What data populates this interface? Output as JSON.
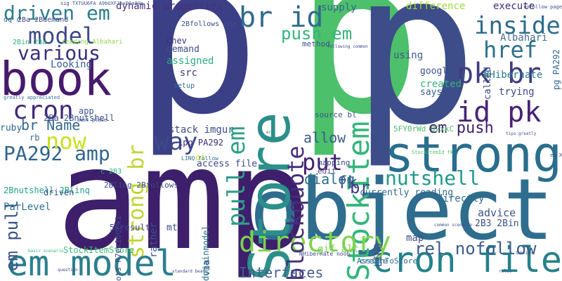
{
  "cloud": {
    "background": "#ffffff",
    "words": [
      {
        "text": "p",
        "color": "#3b3f86"
      },
      {
        "text": "p",
        "color": "#4cc06a"
      },
      {
        "text": "p",
        "color": "#3c4d89"
      },
      {
        "text": "amp",
        "color": "#3d1f6b"
      },
      {
        "text": "object",
        "color": "#2f6d8e"
      },
      {
        "text": "strong",
        "color": "#2a6e8d"
      },
      {
        "text": "Store",
        "color": "#2b8f8a"
      },
      {
        "text": "book",
        "color": "#471a6c"
      },
      {
        "text": "cron file",
        "color": "#24818b"
      },
      {
        "text": "em model",
        "color": "#2c7f8d"
      },
      {
        "text": "StockItem",
        "color": "#32b67a"
      },
      {
        "text": "directory",
        "color": "#7ed34f"
      },
      {
        "text": "pk br",
        "color": "#3f3c80"
      },
      {
        "text": "id pk",
        "color": "#482374"
      },
      {
        "text": "br id",
        "color": "#2e6b8e"
      },
      {
        "text": "model",
        "color": "#3e4989"
      },
      {
        "text": "cron",
        "color": "#3f2a78"
      },
      {
        "text": "various",
        "color": "#3b2f7c"
      },
      {
        "text": "driven em",
        "color": "#2c7d8e"
      },
      {
        "text": "strong br",
        "color": "#bfd630"
      },
      {
        "text": "PA292 amp",
        "color": "#30658d"
      },
      {
        "text": "now",
        "color": "#c9e020"
      },
      {
        "text": "inside",
        "color": "#2c6c8e"
      },
      {
        "text": "href",
        "color": "#2d708e"
      },
      {
        "text": "pull em",
        "color": "#2e9f87"
      },
      {
        "text": "blockquote",
        "color": "#462e7b"
      },
      {
        "text": "push em",
        "color": "#33b57b"
      },
      {
        "text": "way",
        "color": "#3e4a89"
      },
      {
        "text": "put",
        "color": "#431f6e"
      },
      {
        "text": "nutshell",
        "color": "#1f9a8a"
      },
      {
        "text": "rel nofollow",
        "color": "#3a5a8c"
      },
      {
        "text": "em push",
        "color": "#3c1f6e"
      },
      {
        "text": "em pull",
        "color": "#3b5289"
      },
      {
        "text": "fk",
        "color": "#3d4e8a"
      },
      {
        "text": "Interfaces",
        "color": "#455d8a"
      },
      {
        "text": "br Name",
        "color": "#31688e"
      },
      {
        "text": "allow",
        "color": "#3d5a8c"
      },
      {
        "text": "dialog",
        "color": "#2e708e"
      },
      {
        "text": "br",
        "color": "#3e3d8b"
      },
      {
        "text": "dynamic properties",
        "color": "#4a2e7d"
      },
      {
        "text": "supply",
        "color": "#31678e"
      },
      {
        "text": "difference",
        "color": "#9fda3a"
      },
      {
        "text": "execute",
        "color": "#412b78"
      },
      {
        "text": "Chev",
        "color": "#3b2f7c"
      },
      {
        "text": "demand",
        "color": "#3c4d8a"
      },
      {
        "text": "assigned",
        "color": "#27ad81"
      },
      {
        "text": "img src",
        "color": "#413f80"
      },
      {
        "text": "setup",
        "color": "#2e6f8e"
      },
      {
        "text": "stack imgur",
        "color": "#3e4a89"
      },
      {
        "text": "1pg PA292",
        "color": "#3b2a78"
      },
      {
        "text": "access file",
        "color": "#3e4989"
      },
      {
        "text": "using",
        "color": "#38598c"
      },
      {
        "text": "google",
        "color": "#3b528b"
      },
      {
        "text": "created",
        "color": "#2fb47c"
      },
      {
        "text": "says",
        "color": "#34608d"
      },
      {
        "text": "called",
        "color": "#404688"
      },
      {
        "text": "NHibernate",
        "color": "#2a788e"
      },
      {
        "text": "trying",
        "color": "#3e4989"
      },
      {
        "text": "Albahari",
        "color": "#4c6d8c"
      },
      {
        "text": "source bl",
        "color": "#3b528b"
      },
      {
        "text": "5FY0rWd Q2xkC",
        "color": "#4ac16d"
      },
      {
        "text": "mapping",
        "color": "#3e4989"
      },
      {
        "text": "edit",
        "color": "#4e4a88"
      },
      {
        "text": "currently reading",
        "color": "#2f6b8e"
      },
      {
        "text": "directly",
        "color": "#2d708e"
      },
      {
        "text": "advice",
        "color": "#3b528b"
      },
      {
        "text": "2B3 2Bin",
        "color": "#3c5089"
      },
      {
        "text": "map",
        "color": "#3e4c8a"
      },
      {
        "text": "gif alt",
        "color": "#7ad151"
      },
      {
        "text": "LINQ",
        "color": "#3f4889"
      },
      {
        "text": "AssignToStore",
        "color": "#2e6e8e"
      },
      {
        "text": "create",
        "color": "#31688e"
      },
      {
        "text": "StockItemStore",
        "color": "#3bbb75"
      },
      {
        "text": "via",
        "color": "#33638d"
      },
      {
        "text": "domainmodel",
        "color": "#2e6f8e"
      },
      {
        "text": "mt",
        "color": "#3e4a89"
      },
      {
        "text": "rather",
        "color": "#3b528b"
      },
      {
        "text": "2Bnutshell 2Blinq",
        "color": "#1fa187"
      },
      {
        "text": "ParLevel",
        "color": "#2c718e"
      },
      {
        "text": "5Fresult",
        "color": "#3e4989"
      },
      {
        "text": "ots R7ex16QEx1",
        "color": "#3e4a89"
      },
      {
        "text": "driven",
        "color": "#3b528b"
      },
      {
        "text": "2Bling 2Bfollows",
        "color": "#3e4989"
      },
      {
        "text": "app",
        "color": "#3a548c"
      },
      {
        "text": "2Ba 2Bnutshell",
        "color": "#3b528b"
      },
      {
        "text": "ruby",
        "color": "#31688e"
      },
      {
        "text": "rb",
        "color": "#2f6c8e"
      },
      {
        "text": "Looking",
        "color": "#35608d"
      },
      {
        "text": "2Bfollows 2Ba",
        "color": "#3e4c8a"
      },
      {
        "text": "2Ba 2Bdemand",
        "color": "#3e4989"
      },
      {
        "text": "2Bin 2Ba",
        "color": "#2fb47c"
      },
      {
        "text": "reading Albahari",
        "color": "#8ed645"
      },
      {
        "text": "oi",
        "color": "#c5e021"
      },
      {
        "text": "c 2B3",
        "color": "#2fb47c"
      },
      {
        "text": "LINQ follow",
        "color": "#2e6f8e"
      },
      {
        "text": "method",
        "color": "#3b528b"
      },
      {
        "text": "StockItemId fk",
        "color": "#4ac16d"
      },
      {
        "text": "nofollow page",
        "color": "#3e4a89"
      },
      {
        "text": "pg PA292",
        "color": "#31688e"
      },
      {
        "text": "following common",
        "color": "#3e4989"
      },
      {
        "text": "greatly appreciated",
        "color": "#2e6e8e"
      },
      {
        "text": "sig TXTUU6FA A9bUXFJexD0a9Ha",
        "color": "#3b528b"
      },
      {
        "text": "dq c",
        "color": "#31688e"
      },
      {
        "text": "best place",
        "color": "#3e4a89"
      },
      {
        "text": "basic scenario",
        "color": "#2fb47c"
      },
      {
        "text": "common scenario",
        "color": "#3b528b"
      },
      {
        "text": "NHibernate noob",
        "color": "#3e4989"
      },
      {
        "text": "standard bean",
        "color": "#3e4a89"
      },
      {
        "text": "Design",
        "color": "#31688e"
      },
      {
        "text": "question",
        "color": "#3e4a89"
      },
      {
        "text": "rules",
        "color": "#3b528b"
      },
      {
        "text": "ea X",
        "color": "#3e4989"
      },
      {
        "text": "tips greatly",
        "color": "#3b528b"
      },
      {
        "text": "hl er",
        "color": "#2e6e8e"
      }
    ]
  }
}
